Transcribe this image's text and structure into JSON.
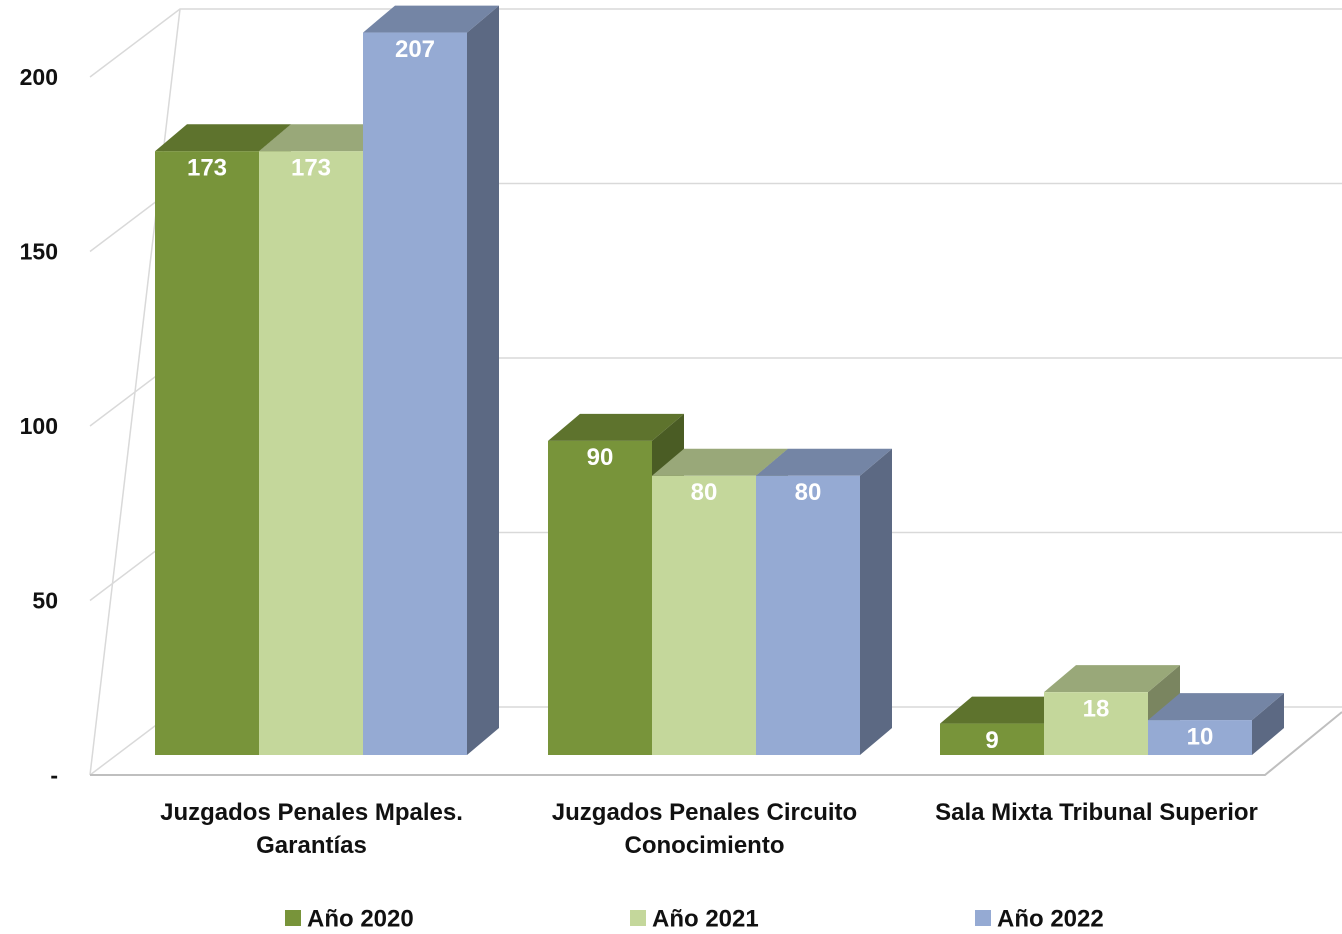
{
  "chart_data": {
    "type": "bar3d",
    "categories": [
      "Juzgados Penales Mpales. Garantías",
      "Juzgados Penales Circuito Conocimiento",
      "Sala Mixta Tribunal Superior"
    ],
    "series": [
      {
        "name": "Año 2020",
        "color": "#78943a",
        "values": [
          173,
          90,
          9
        ]
      },
      {
        "name": "Año 2021",
        "color": "#c4d79b",
        "values": [
          173,
          80,
          18
        ]
      },
      {
        "name": "Año 2022",
        "color": "#95aad3",
        "values": [
          207,
          80,
          10
        ]
      }
    ],
    "ylim": [
      0,
      200
    ],
    "yticks": [
      {
        "value": 0,
        "label": "-"
      },
      50,
      100,
      150,
      200
    ],
    "grid": true,
    "legend": "bottom"
  }
}
